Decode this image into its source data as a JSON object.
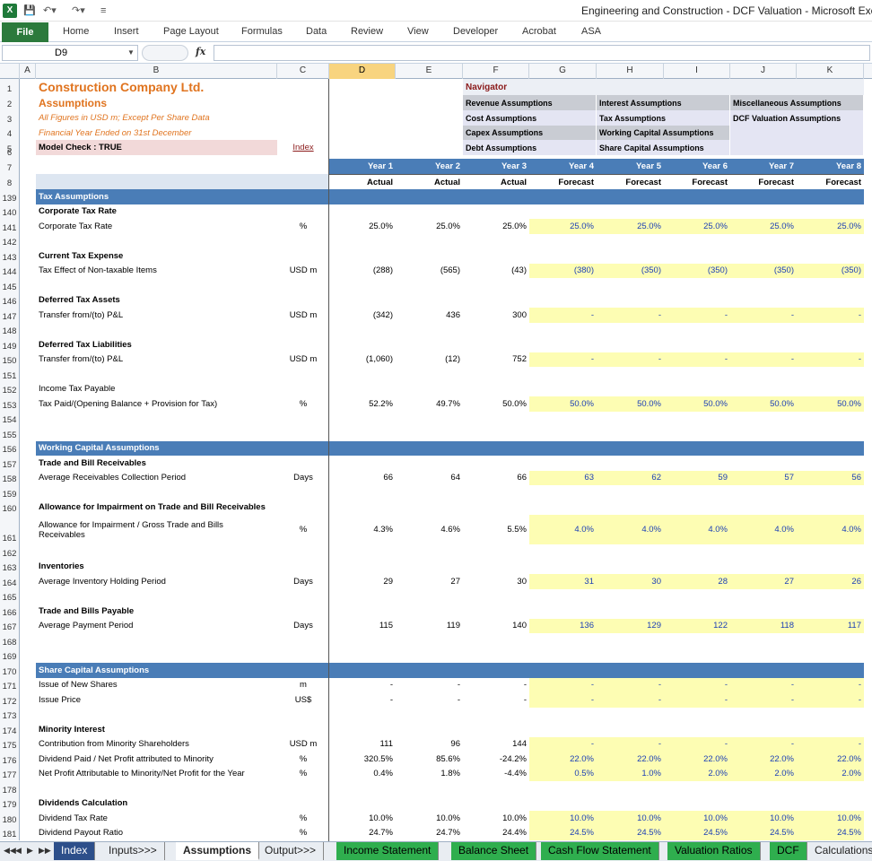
{
  "window": {
    "title": "Engineering and Construction - DCF Valuation  -  Microsoft Excel",
    "app_icon": "X",
    "quick_access": [
      "save-icon",
      "undo-icon",
      "redo-icon",
      "customize-icon"
    ]
  },
  "ribbon": {
    "file": "File",
    "tabs": [
      "Home",
      "Insert",
      "Page Layout",
      "Formulas",
      "Data",
      "Review",
      "View",
      "Developer",
      "Acrobat",
      "ASA"
    ]
  },
  "formula_bar": {
    "name_box": "D9",
    "fx": "fx",
    "value": ""
  },
  "columns": [
    "A",
    "B",
    "C",
    "D",
    "E",
    "F",
    "G",
    "H",
    "I",
    "J",
    "K"
  ],
  "selected_column": "D",
  "header": {
    "company": "Construction Company Ltd.",
    "subtitle": "Assumptions",
    "note1": "All Figures in USD m; Except Per Share Data",
    "note2": "Financial Year Ended on 31st December",
    "model_check": "Model Check : TRUE",
    "index_link": "Index",
    "navigator": "Navigator",
    "nav_items": [
      [
        "Revenue Assumptions",
        "Interest Assumptions",
        "Miscellaneous Assumptions"
      ],
      [
        "Cost Assumptions",
        "Tax Assumptions",
        "DCF Valuation Assumptions"
      ],
      [
        "Capex Assumptions",
        "Working Capital Assumptions",
        ""
      ],
      [
        "Debt Assumptions",
        "Share Capital Assumptions",
        ""
      ]
    ],
    "years": [
      "Year 1",
      "Year 2",
      "Year 3",
      "Year 4",
      "Year 5",
      "Year 6",
      "Year 7",
      "Year 8"
    ],
    "periods": [
      "Actual",
      "Actual",
      "Actual",
      "Forecast",
      "Forecast",
      "Forecast",
      "Forecast",
      "Forecast"
    ]
  },
  "rows": [
    {
      "n": "139",
      "type": "band",
      "label": "Tax Assumptions"
    },
    {
      "n": "140",
      "type": "heading",
      "label": "Corporate Tax Rate"
    },
    {
      "n": "141",
      "label": "Corporate Tax Rate",
      "unit": "%",
      "actual": [
        "25.0%",
        "25.0%",
        "25.0%"
      ],
      "forecast": [
        "25.0%",
        "25.0%",
        "25.0%",
        "25.0%",
        "25.0%"
      ]
    },
    {
      "n": "142"
    },
    {
      "n": "143",
      "type": "heading",
      "label": "Current Tax Expense"
    },
    {
      "n": "144",
      "label": "Tax Effect of Non-taxable Items",
      "unit": "USD m",
      "actual": [
        "(288)",
        "(565)",
        "(43)"
      ],
      "forecast": [
        "(380)",
        "(350)",
        "(350)",
        "(350)",
        "(350)"
      ]
    },
    {
      "n": "145"
    },
    {
      "n": "146",
      "type": "heading",
      "label": "Deferred Tax Assets"
    },
    {
      "n": "147",
      "label": "Transfer from/(to) P&L",
      "unit": "USD m",
      "actual": [
        "(342)",
        "436",
        "300"
      ],
      "forecast": [
        "-",
        "-",
        "-",
        "-",
        "-"
      ]
    },
    {
      "n": "148"
    },
    {
      "n": "149",
      "type": "heading",
      "label": "Deferred Tax Liabilities"
    },
    {
      "n": "150",
      "label": "Transfer from/(to) P&L",
      "unit": "USD m",
      "actual": [
        "(1,060)",
        "(12)",
        "752"
      ],
      "forecast": [
        "-",
        "-",
        "-",
        "-",
        "-"
      ]
    },
    {
      "n": "151"
    },
    {
      "n": "152",
      "label": "Income Tax Payable"
    },
    {
      "n": "153",
      "label": "Tax Paid/(Opening Balance + Provision for Tax)",
      "unit": "%",
      "actual": [
        "52.2%",
        "49.7%",
        "50.0%"
      ],
      "forecast": [
        "50.0%",
        "50.0%",
        "50.0%",
        "50.0%",
        "50.0%"
      ]
    },
    {
      "n": "154"
    },
    {
      "n": "155"
    },
    {
      "n": "156",
      "type": "band",
      "label": "Working Capital Assumptions"
    },
    {
      "n": "157",
      "type": "heading",
      "label": "Trade and Bill Receivables"
    },
    {
      "n": "158",
      "label": "Average Receivables Collection Period",
      "unit": "Days",
      "actual": [
        "66",
        "64",
        "66"
      ],
      "forecast": [
        "63",
        "62",
        "59",
        "57",
        "56"
      ]
    },
    {
      "n": "159"
    },
    {
      "n": "160",
      "type": "heading",
      "label": "Allowance for Impairment on Trade and Bill Receivables"
    },
    {
      "n": "161",
      "tall": true,
      "label": "Allowance for Impairment / Gross Trade and Bills",
      "label2": "Receivables",
      "unit": "%",
      "actual": [
        "4.3%",
        "4.6%",
        "5.5%"
      ],
      "forecast": [
        "4.0%",
        "4.0%",
        "4.0%",
        "4.0%",
        "4.0%"
      ]
    },
    {
      "n": "162"
    },
    {
      "n": "163",
      "type": "heading",
      "label": "Inventories"
    },
    {
      "n": "164",
      "label": "Average Inventory Holding Period",
      "unit": "Days",
      "actual": [
        "29",
        "27",
        "30"
      ],
      "forecast": [
        "31",
        "30",
        "28",
        "27",
        "26"
      ]
    },
    {
      "n": "165"
    },
    {
      "n": "166",
      "type": "heading",
      "label": "Trade and Bills Payable"
    },
    {
      "n": "167",
      "label": "Average Payment Period",
      "unit": "Days",
      "actual": [
        "115",
        "119",
        "140"
      ],
      "forecast": [
        "136",
        "129",
        "122",
        "118",
        "117"
      ]
    },
    {
      "n": "168"
    },
    {
      "n": "169"
    },
    {
      "n": "170",
      "type": "band",
      "label": "Share Capital Assumptions"
    },
    {
      "n": "171",
      "label": "Issue of New Shares",
      "unit": "m",
      "actual": [
        "-",
        "-",
        "-"
      ],
      "forecast": [
        "-",
        "-",
        "-",
        "-",
        "-"
      ]
    },
    {
      "n": "172",
      "label": "Issue Price",
      "unit": "US$",
      "actual": [
        "-",
        "-",
        "-"
      ],
      "forecast": [
        "-",
        "-",
        "-",
        "-",
        "-"
      ]
    },
    {
      "n": "173"
    },
    {
      "n": "174",
      "type": "heading",
      "label": "Minority Interest"
    },
    {
      "n": "175",
      "label": "Contribution from Minority Shareholders",
      "unit": "USD m",
      "actual": [
        "111",
        "96",
        "144"
      ],
      "forecast": [
        "-",
        "-",
        "-",
        "-",
        "-"
      ]
    },
    {
      "n": "176",
      "label": "Dividend Paid / Net Profit attributed to Minority",
      "unit": "%",
      "actual": [
        "320.5%",
        "85.6%",
        "-24.2%"
      ],
      "forecast": [
        "22.0%",
        "22.0%",
        "22.0%",
        "22.0%",
        "22.0%"
      ]
    },
    {
      "n": "177",
      "label": "Net Profit Attributable to Minority/Net Profit for the Year",
      "unit": "%",
      "actual": [
        "0.4%",
        "1.8%",
        "-4.4%"
      ],
      "forecast": [
        "0.5%",
        "1.0%",
        "2.0%",
        "2.0%",
        "2.0%"
      ]
    },
    {
      "n": "178"
    },
    {
      "n": "179",
      "type": "heading",
      "label": "Dividends Calculation"
    },
    {
      "n": "180",
      "label": "Dividend Tax Rate",
      "unit": "%",
      "actual": [
        "10.0%",
        "10.0%",
        "10.0%"
      ],
      "forecast": [
        "10.0%",
        "10.0%",
        "10.0%",
        "10.0%",
        "10.0%"
      ]
    },
    {
      "n": "181",
      "label": "Dividend Payout Ratio",
      "unit": "%",
      "actual": [
        "24.7%",
        "24.7%",
        "24.4%"
      ],
      "forecast": [
        "24.5%",
        "24.5%",
        "24.5%",
        "24.5%",
        "24.5%"
      ]
    }
  ],
  "sheet_nav": [
    "first-sheet-icon",
    "prev-sheet-icon",
    "next-sheet-icon",
    "last-sheet-icon"
  ],
  "sheet_tabs": [
    {
      "label": "Index",
      "style": "navy"
    },
    {
      "label": "Inputs>>>",
      "style": "plain"
    },
    {
      "label": "Assumptions",
      "style": "active"
    },
    {
      "label": "Output>>>",
      "style": "plain"
    },
    {
      "label": "Income Statement",
      "style": "green"
    },
    {
      "label": "Balance Sheet",
      "style": "green"
    },
    {
      "label": "Cash Flow Statement",
      "style": "green"
    },
    {
      "label": "Valuation Ratios",
      "style": "green"
    },
    {
      "label": "DCF",
      "style": "green"
    },
    {
      "label": "Calculations:",
      "style": "plain"
    }
  ],
  "colors": {
    "band": "#4a7db7",
    "input_fill": "#fdfdb3",
    "input_text": "#1c3fb5",
    "title_orange": "#e0741f",
    "file_green": "#2c7a3c"
  }
}
